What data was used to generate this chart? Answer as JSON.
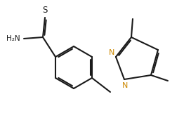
{
  "background_color": "#ffffff",
  "line_color": "#1a1a1a",
  "n_color": "#cc8800",
  "line_width": 1.5,
  "dbo": 0.018,
  "fs": 7.5,
  "figsize": [
    2.72,
    1.78
  ],
  "dpi": 100,
  "xlim": [
    0.0,
    2.72
  ],
  "ylim": [
    0.0,
    1.78
  ]
}
